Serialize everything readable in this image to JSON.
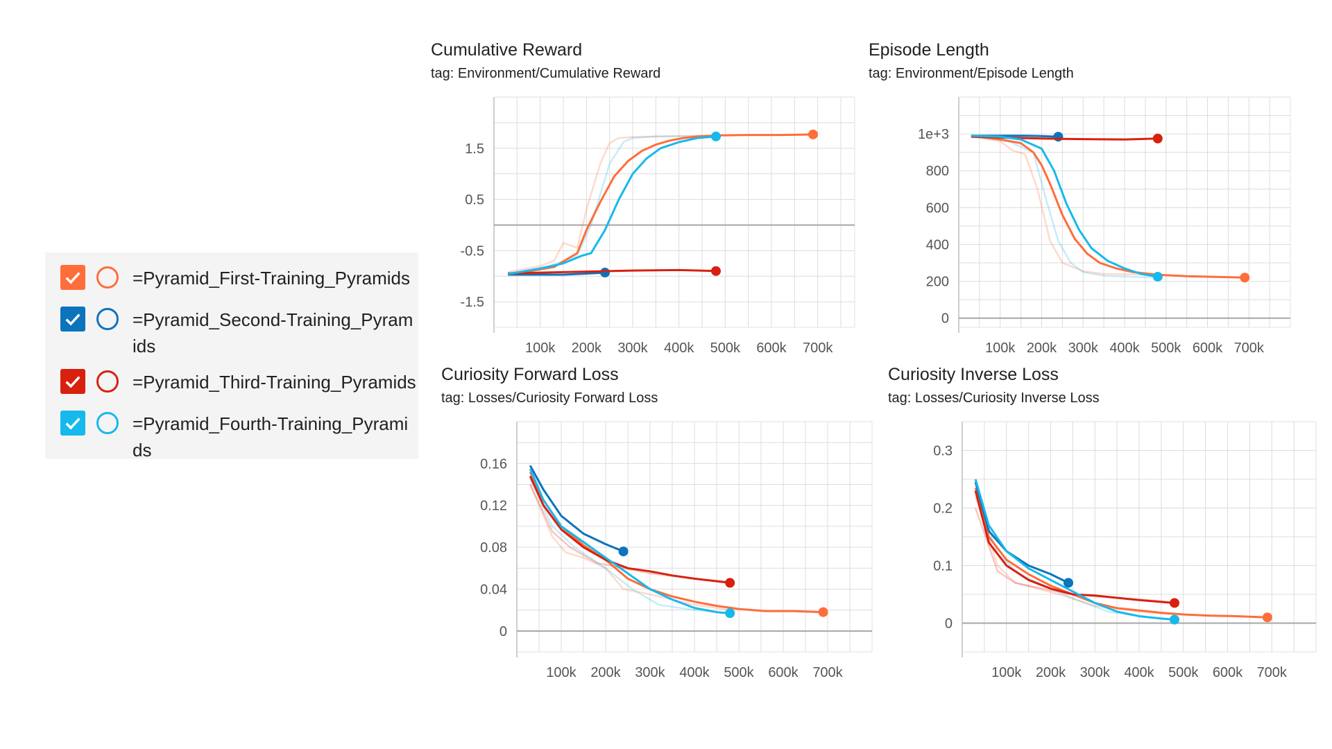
{
  "legend": {
    "runs": [
      {
        "label": "=Pyramid_First-Training_Pyramids",
        "color": "#ff6d3a",
        "checked": true
      },
      {
        "label": "=Pyramid_Second-Training_Pyramids",
        "color": "#0c73bd",
        "checked": true
      },
      {
        "label": "=Pyramid_Third-Training_Pyramids",
        "color": "#d8200f",
        "checked": true
      },
      {
        "label": "=Pyramid_Fourth-Training_Pyramids",
        "color": "#16b9ec",
        "checked": true
      }
    ]
  },
  "chart_data": [
    {
      "type": "line",
      "title": "Cumulative Reward",
      "subtitle": "tag: Environment/Cumulative Reward",
      "xlabel": "",
      "ylabel": "",
      "xlim": [
        0,
        780000
      ],
      "ylim": [
        -2.0,
        2.5
      ],
      "xticks": [
        100000,
        200000,
        300000,
        400000,
        500000,
        600000,
        700000
      ],
      "xtick_labels": [
        "100k",
        "200k",
        "300k",
        "400k",
        "500k",
        "600k",
        "700k"
      ],
      "yticks": [
        1.5,
        0.5,
        -0.5,
        -1.5
      ],
      "ytick_labels": [
        "1.5",
        "0.5",
        "-0.5",
        "-1.5"
      ],
      "zero_line": 0,
      "grid": true,
      "series": [
        {
          "name": "=Pyramid_First-Training_Pyramids",
          "color": "#ff6d3a",
          "marker_at_end": true,
          "x": [
            30000,
            80000,
            130000,
            180000,
            200000,
            230000,
            260000,
            290000,
            320000,
            350000,
            380000,
            410000,
            440000,
            480000,
            550000,
            620000,
            690000
          ],
          "y": [
            -0.95,
            -0.9,
            -0.82,
            -0.55,
            -0.1,
            0.45,
            0.95,
            1.25,
            1.45,
            1.57,
            1.65,
            1.7,
            1.73,
            1.75,
            1.76,
            1.76,
            1.77
          ],
          "faint": {
            "x": [
              30000,
              100000,
              130000,
              150000,
              180000,
              200000,
              230000,
              250000,
              270000,
              300000,
              400000,
              480000
            ],
            "y": [
              -0.92,
              -0.8,
              -0.7,
              -0.35,
              -0.45,
              0.3,
              1.2,
              1.6,
              1.7,
              1.72,
              1.74,
              1.75
            ]
          }
        },
        {
          "name": "=Pyramid_Second-Training_Pyramids",
          "color": "#0c73bd",
          "marker_at_end": true,
          "x": [
            30000,
            100000,
            150000,
            200000,
            240000
          ],
          "y": [
            -0.97,
            -0.97,
            -0.97,
            -0.95,
            -0.93
          ]
        },
        {
          "name": "=Pyramid_Third-Training_Pyramids",
          "color": "#d8200f",
          "marker_at_end": true,
          "x": [
            30000,
            100000,
            200000,
            300000,
            400000,
            480000
          ],
          "y": [
            -0.95,
            -0.93,
            -0.91,
            -0.89,
            -0.88,
            -0.9
          ]
        },
        {
          "name": "=Pyramid_Fourth-Training_Pyramids",
          "color": "#16b9ec",
          "marker_at_end": true,
          "x": [
            30000,
            100000,
            150000,
            190000,
            210000,
            240000,
            270000,
            300000,
            330000,
            360000,
            400000,
            440000,
            480000
          ],
          "y": [
            -0.96,
            -0.85,
            -0.75,
            -0.6,
            -0.55,
            -0.1,
            0.5,
            1.0,
            1.3,
            1.5,
            1.62,
            1.7,
            1.73
          ],
          "faint": {
            "x": [
              30000,
              120000,
              180000,
              210000,
              250000,
              280000,
              300000,
              350000,
              480000
            ],
            "y": [
              -0.95,
              -0.8,
              -0.6,
              0.0,
              1.2,
              1.62,
              1.7,
              1.73,
              1.74
            ]
          }
        }
      ]
    },
    {
      "type": "line",
      "title": "Episode Length",
      "subtitle": "tag: Environment/Episode Length",
      "xlabel": "",
      "ylabel": "",
      "xlim": [
        0,
        800000
      ],
      "ylim": [
        -50,
        1200
      ],
      "xticks": [
        100000,
        200000,
        300000,
        400000,
        500000,
        600000,
        700000
      ],
      "xtick_labels": [
        "100k",
        "200k",
        "300k",
        "400k",
        "500k",
        "600k",
        "700k"
      ],
      "yticks": [
        1000,
        800,
        600,
        400,
        200,
        0
      ],
      "ytick_labels": [
        "1e+3",
        "800",
        "600",
        "400",
        "200",
        "0"
      ],
      "zero_line": 0,
      "grid": true,
      "series": [
        {
          "name": "=Pyramid_First-Training_Pyramids",
          "color": "#ff6d3a",
          "marker_at_end": true,
          "x": [
            30000,
            100000,
            150000,
            180000,
            200000,
            220000,
            250000,
            280000,
            310000,
            340000,
            380000,
            420000,
            480000,
            550000,
            620000,
            690000
          ],
          "y": [
            990,
            970,
            950,
            900,
            830,
            730,
            560,
            430,
            350,
            300,
            270,
            250,
            235,
            228,
            224,
            220
          ],
          "faint": {
            "x": [
              30000,
              100000,
              130000,
              160000,
              190000,
              220000,
              250000,
              300000,
              350000,
              480000
            ],
            "y": [
              985,
              960,
              910,
              890,
              700,
              420,
              300,
              255,
              240,
              235
            ]
          }
        },
        {
          "name": "=Pyramid_Second-Training_Pyramids",
          "color": "#0c73bd",
          "marker_at_end": true,
          "x": [
            30000,
            100000,
            160000,
            200000,
            240000
          ],
          "y": [
            990,
            990,
            990,
            988,
            985
          ]
        },
        {
          "name": "=Pyramid_Third-Training_Pyramids",
          "color": "#d8200f",
          "marker_at_end": true,
          "x": [
            30000,
            100000,
            200000,
            300000,
            400000,
            480000
          ],
          "y": [
            985,
            980,
            975,
            972,
            970,
            975
          ]
        },
        {
          "name": "=Pyramid_Fourth-Training_Pyramids",
          "color": "#16b9ec",
          "marker_at_end": true,
          "x": [
            30000,
            100000,
            150000,
            200000,
            230000,
            260000,
            290000,
            320000,
            360000,
            400000,
            440000,
            480000
          ],
          "y": [
            990,
            985,
            970,
            920,
            800,
            620,
            480,
            380,
            310,
            270,
            240,
            225
          ],
          "faint": {
            "x": [
              30000,
              120000,
              180000,
              210000,
              240000,
              270000,
              300000,
              350000,
              480000
            ],
            "y": [
              988,
              960,
              900,
              650,
              420,
              300,
              250,
              230,
              220
            ]
          }
        }
      ]
    },
    {
      "type": "line",
      "title": "Curiosity Forward Loss",
      "subtitle": "tag: Losses/Curiosity Forward Loss",
      "xlabel": "",
      "ylabel": "",
      "xlim": [
        0,
        800000
      ],
      "ylim": [
        -0.02,
        0.2
      ],
      "xticks": [
        100000,
        200000,
        300000,
        400000,
        500000,
        600000,
        700000
      ],
      "xtick_labels": [
        "100k",
        "200k",
        "300k",
        "400k",
        "500k",
        "600k",
        "700k"
      ],
      "yticks": [
        0.16,
        0.12,
        0.08,
        0.04,
        0
      ],
      "ytick_labels": [
        "0.16",
        "0.12",
        "0.08",
        "0.04",
        "0"
      ],
      "zero_line": 0,
      "grid": true,
      "series": [
        {
          "name": "=Pyramid_First-Training_Pyramids",
          "color": "#ff6d3a",
          "marker_at_end": true,
          "x": [
            30000,
            60000,
            100000,
            150000,
            200000,
            250000,
            300000,
            350000,
            400000,
            450000,
            500000,
            560000,
            620000,
            690000
          ],
          "y": [
            0.152,
            0.125,
            0.1,
            0.082,
            0.068,
            0.05,
            0.04,
            0.033,
            0.028,
            0.024,
            0.021,
            0.019,
            0.019,
            0.018
          ],
          "faint": {
            "x": [
              30000,
              80000,
              110000,
              150000,
              200000,
              240000,
              300000,
              400000,
              480000
            ],
            "y": [
              0.14,
              0.09,
              0.075,
              0.07,
              0.06,
              0.04,
              0.035,
              0.025,
              0.02
            ]
          }
        },
        {
          "name": "=Pyramid_Second-Training_Pyramids",
          "color": "#0c73bd",
          "marker_at_end": true,
          "x": [
            30000,
            60000,
            100000,
            150000,
            200000,
            240000
          ],
          "y": [
            0.158,
            0.135,
            0.11,
            0.093,
            0.083,
            0.076
          ]
        },
        {
          "name": "=Pyramid_Third-Training_Pyramids",
          "color": "#d8200f",
          "marker_at_end": true,
          "x": [
            30000,
            60000,
            100000,
            150000,
            200000,
            250000,
            300000,
            350000,
            400000,
            480000
          ],
          "y": [
            0.148,
            0.12,
            0.097,
            0.08,
            0.068,
            0.06,
            0.057,
            0.053,
            0.05,
            0.046
          ],
          "faint": {
            "x": [
              30000,
              80000,
              120000,
              180000,
              240000,
              300000,
              400000,
              480000
            ],
            "y": [
              0.14,
              0.095,
              0.08,
              0.065,
              0.06,
              0.055,
              0.05,
              0.047
            ]
          }
        },
        {
          "name": "=Pyramid_Fourth-Training_Pyramids",
          "color": "#16b9ec",
          "marker_at_end": true,
          "x": [
            30000,
            60000,
            100000,
            150000,
            200000,
            250000,
            300000,
            350000,
            400000,
            450000,
            480000
          ],
          "y": [
            0.155,
            0.125,
            0.1,
            0.085,
            0.07,
            0.055,
            0.04,
            0.03,
            0.022,
            0.018,
            0.017
          ],
          "faint": {
            "x": [
              30000,
              80000,
              130000,
              200000,
              260000,
              320000,
              400000,
              480000
            ],
            "y": [
              0.145,
              0.1,
              0.08,
              0.06,
              0.04,
              0.025,
              0.02,
              0.017
            ]
          }
        }
      ]
    },
    {
      "type": "line",
      "title": "Curiosity Inverse Loss",
      "subtitle": "tag: Losses/Curiosity Inverse Loss",
      "xlabel": "",
      "ylabel": "",
      "xlim": [
        0,
        800000
      ],
      "ylim": [
        -0.05,
        0.35
      ],
      "xticks": [
        100000,
        200000,
        300000,
        400000,
        500000,
        600000,
        700000
      ],
      "xtick_labels": [
        "100k",
        "200k",
        "300k",
        "400k",
        "500k",
        "600k",
        "700k"
      ],
      "yticks": [
        0.3,
        0.2,
        0.1,
        0
      ],
      "ytick_labels": [
        "0.3",
        "0.2",
        "0.1",
        "0"
      ],
      "zero_line": 0,
      "grid": true,
      "series": [
        {
          "name": "=Pyramid_First-Training_Pyramids",
          "color": "#ff6d3a",
          "marker_at_end": true,
          "x": [
            30000,
            60000,
            100000,
            150000,
            200000,
            250000,
            300000,
            350000,
            400000,
            450000,
            500000,
            560000,
            620000,
            690000
          ],
          "y": [
            0.235,
            0.15,
            0.11,
            0.085,
            0.065,
            0.05,
            0.035,
            0.026,
            0.022,
            0.018,
            0.015,
            0.013,
            0.012,
            0.01
          ],
          "faint": {
            "x": [
              30000,
              80000,
              120000,
              170000,
              220000,
              300000,
              400000,
              480000
            ],
            "y": [
              0.22,
              0.1,
              0.07,
              0.06,
              0.05,
              0.03,
              0.02,
              0.015
            ]
          }
        },
        {
          "name": "=Pyramid_Second-Training_Pyramids",
          "color": "#0c73bd",
          "marker_at_end": true,
          "x": [
            30000,
            60000,
            100000,
            150000,
            200000,
            240000
          ],
          "y": [
            0.245,
            0.16,
            0.125,
            0.1,
            0.085,
            0.07
          ]
        },
        {
          "name": "=Pyramid_Third-Training_Pyramids",
          "color": "#d8200f",
          "marker_at_end": true,
          "x": [
            30000,
            60000,
            100000,
            150000,
            200000,
            250000,
            300000,
            350000,
            400000,
            480000
          ],
          "y": [
            0.23,
            0.14,
            0.1,
            0.075,
            0.06,
            0.05,
            0.048,
            0.044,
            0.04,
            0.035
          ],
          "faint": {
            "x": [
              30000,
              80000,
              120000,
              180000,
              250000,
              330000,
              420000,
              480000
            ],
            "y": [
              0.2,
              0.09,
              0.07,
              0.06,
              0.05,
              0.045,
              0.04,
              0.036
            ]
          }
        },
        {
          "name": "=Pyramid_Fourth-Training_Pyramids",
          "color": "#16b9ec",
          "marker_at_end": true,
          "x": [
            30000,
            60000,
            100000,
            150000,
            200000,
            250000,
            300000,
            350000,
            400000,
            450000,
            480000
          ],
          "y": [
            0.25,
            0.17,
            0.125,
            0.095,
            0.075,
            0.055,
            0.035,
            0.02,
            0.012,
            0.008,
            0.006
          ],
          "faint": {
            "x": [
              30000,
              80000,
              130000,
              200000,
              260000,
              330000,
              420000,
              480000
            ],
            "y": [
              0.23,
              0.12,
              0.085,
              0.06,
              0.04,
              0.02,
              0.01,
              0.006
            ]
          }
        }
      ]
    }
  ]
}
